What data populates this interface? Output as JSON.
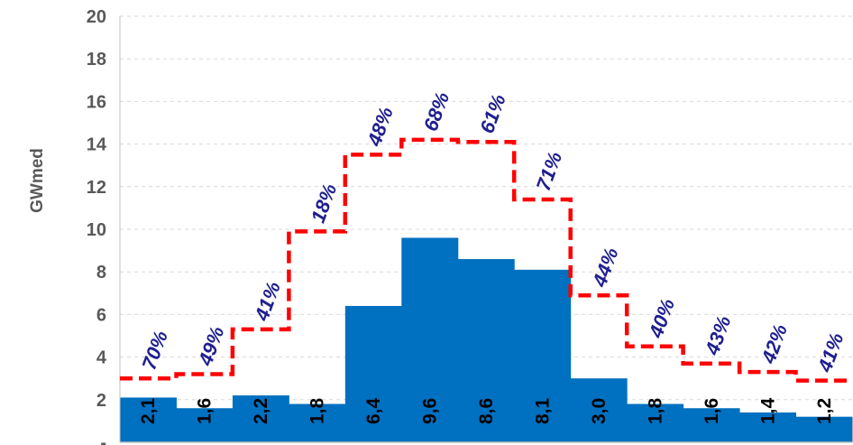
{
  "chart_data": {
    "type": "bar",
    "ylabel": "GWmed",
    "ylim": [
      0,
      20
    ],
    "yticks": [
      "-",
      "2",
      "4",
      "6",
      "8",
      "10",
      "12",
      "14",
      "16",
      "18",
      "20"
    ],
    "grid": true,
    "series": [
      {
        "type": "bar",
        "values": [
          2.1,
          1.6,
          2.2,
          1.8,
          6.4,
          9.6,
          8.6,
          8.1,
          3.0,
          1.8,
          1.6,
          1.4,
          1.2
        ],
        "labels": [
          "2,1",
          "1,6",
          "2,2",
          "1,8",
          "6,4",
          "9,6",
          "8,6",
          "8,1",
          "3,0",
          "1,8",
          "1,6",
          "1,4",
          "1,2"
        ],
        "color": "#0070C0"
      },
      {
        "type": "step-line",
        "values": [
          3.0,
          3.2,
          5.3,
          9.9,
          13.5,
          14.2,
          14.1,
          11.4,
          6.9,
          4.5,
          3.7,
          3.3,
          2.9
        ],
        "color": "#FF0000",
        "dash": "dashed"
      }
    ],
    "percent_labels": [
      "70%",
      "49%",
      "41%",
      "18%",
      "48%",
      "68%",
      "61%",
      "71%",
      "44%",
      "40%",
      "43%",
      "42%",
      "41%"
    ],
    "percent_color": "#1F1F8F"
  }
}
